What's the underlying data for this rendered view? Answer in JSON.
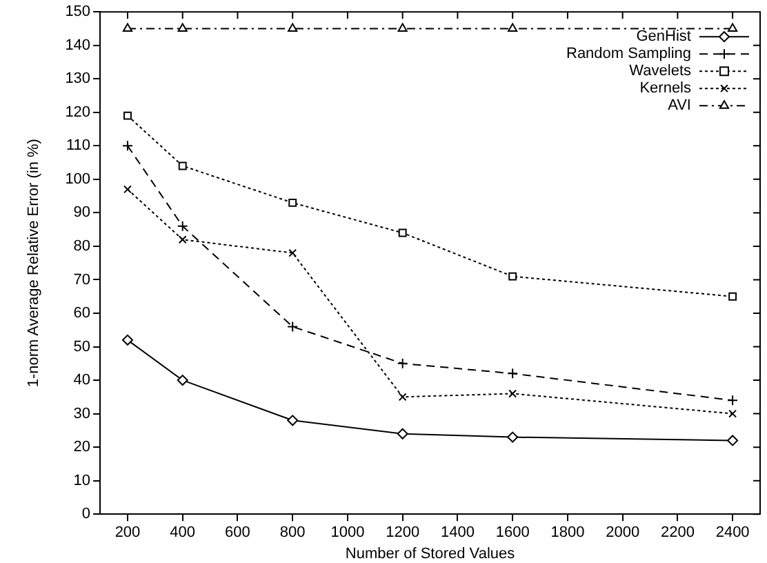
{
  "chart_data": {
    "type": "line",
    "xlabel": "Number of Stored Values",
    "ylabel": "1-norm Average Relative Error (in %)",
    "x": [
      200,
      400,
      800,
      1200,
      1600,
      2400
    ],
    "series": [
      {
        "name": "GenHist",
        "color": "#000000",
        "marker": "diamond",
        "line_style": "solid",
        "values": [
          52,
          40,
          28,
          24,
          23,
          22
        ]
      },
      {
        "name": "Random Sampling",
        "color": "#000000",
        "marker": "cross",
        "line_style": "dashed",
        "values": [
          110,
          86,
          56,
          45,
          42,
          34
        ]
      },
      {
        "name": "Wavelets",
        "color": "#000000",
        "marker": "square",
        "line_style": "dotted",
        "values": [
          119,
          104,
          93,
          84,
          71,
          65
        ]
      },
      {
        "name": "Kernels",
        "color": "#000000",
        "marker": "x",
        "line_style": "dotted",
        "values": [
          97,
          82,
          78,
          35,
          36,
          30
        ]
      },
      {
        "name": "AVI",
        "color": "#000000",
        "marker": "triangle",
        "line_style": "dashdot",
        "values": [
          145,
          145,
          145,
          145,
          145,
          145
        ]
      }
    ],
    "xlim": [
      100,
      2500
    ],
    "xticks": [
      200,
      400,
      600,
      800,
      1000,
      1200,
      1400,
      1600,
      1800,
      2000,
      2200,
      2400
    ],
    "ylim": [
      0,
      150
    ],
    "yticks": [
      0,
      10,
      20,
      30,
      40,
      50,
      60,
      70,
      80,
      90,
      100,
      110,
      120,
      130,
      140,
      150
    ],
    "grid": false,
    "legend": "top right"
  }
}
